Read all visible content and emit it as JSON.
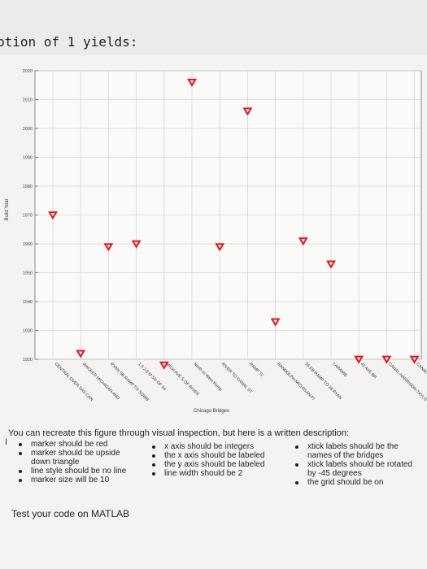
{
  "intro_text": "ption of 1 yields:",
  "chart_data": {
    "type": "scatter",
    "xlabel": "Chicago Bridges",
    "ylabel": "Build Year",
    "ylim": [
      1920,
      2020
    ],
    "yticks": [
      1920,
      1930,
      1940,
      1950,
      1960,
      1970,
      1980,
      1990,
      2000,
      2010,
      2020
    ],
    "categories": [
      "CENTRAL OVER SAS CAN",
      "WACKER MICHIGAN AND",
      "RYAN SB RAMP TO SOWB",
      "1.3 2.8 M SN OF 94",
      "MICH AVE S OF RIVER",
      "North to West Ramp",
      "RIVER TO CANAL ST",
      "RAMP 'G'",
      "RANDOLPH-MICHIGAN-FI",
      "55 EB RAMP TO 38 RYAN",
      "LARAMIE",
      "42 AVE BR",
      "CANAL-HARRISON-TAYLO",
      "CANAL-MADISON-ADAMS"
    ],
    "values": [
      1970,
      1922,
      1959,
      1960,
      1918,
      2016,
      1959,
      2006,
      1933,
      1961,
      1953,
      1920,
      1920,
      1920
    ],
    "marker": "down-triangle",
    "marker_color": "#e8141c",
    "grid": true,
    "line_style": "none"
  },
  "description": {
    "heading": "You can recreate this figure through visual inspection, but here is a written description:",
    "cursor_glyph": "I",
    "col1": [
      "marker should be red",
      "marker should be upside",
      "down triangle",
      "line style should be no line",
      "marker size will be 10"
    ],
    "col2": [
      "x axis should be integers",
      "the x axis should be labeled",
      "the y axis should be labeled",
      "line width should be 2"
    ],
    "col3": [
      "xtick labels should be the",
      "names of the bridges",
      "xtick labels should be rotated",
      "by -45 degrees",
      "the grid should be on"
    ]
  },
  "footer": "Test your code on MATLAB"
}
